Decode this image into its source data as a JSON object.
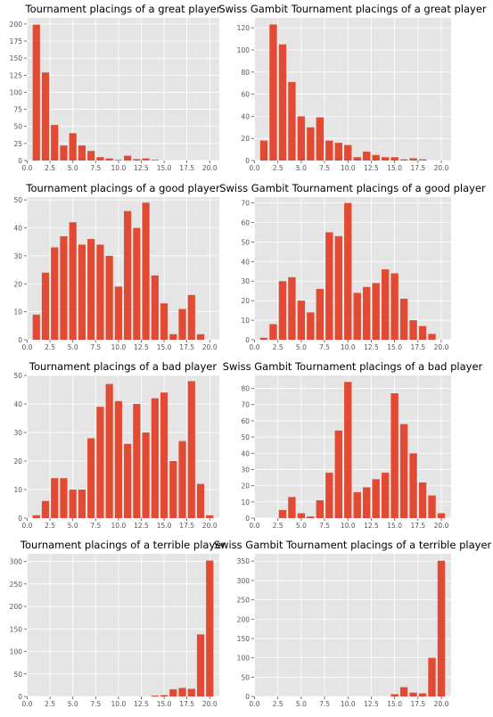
{
  "chart_data": [
    {
      "type": "bar",
      "title": "Tournament placings of a great player",
      "x": [
        1,
        2,
        3,
        4,
        5,
        6,
        7,
        8,
        9,
        10,
        11,
        12,
        13,
        14,
        15,
        16,
        17,
        18,
        19,
        20
      ],
      "values": [
        199,
        129,
        52,
        22,
        40,
        22,
        14,
        5,
        3,
        1,
        7,
        2,
        3,
        1,
        0,
        0,
        0,
        0,
        0,
        0
      ],
      "xlim": [
        -0.05,
        21.05
      ],
      "ylim": [
        0,
        209
      ],
      "xticks": [
        0.0,
        2.5,
        5.0,
        7.5,
        10.0,
        12.5,
        15.0,
        17.5,
        20.0
      ],
      "xtick_labels": [
        "0.0",
        "2.5",
        "5.0",
        "7.5",
        "10.0",
        "12.5",
        "15.0",
        "17.5",
        "20.0"
      ],
      "yticks": [
        0,
        25,
        50,
        75,
        100,
        125,
        150,
        175,
        200
      ],
      "ytick_labels": [
        "0",
        "25",
        "50",
        "75",
        "100",
        "125",
        "150",
        "175",
        "200"
      ],
      "grid": true
    },
    {
      "type": "bar",
      "title": "Swiss Gambit Tournament placings of a great player",
      "x": [
        1,
        2,
        3,
        4,
        5,
        6,
        7,
        8,
        9,
        10,
        11,
        12,
        13,
        14,
        15,
        16,
        17,
        18,
        19,
        20
      ],
      "values": [
        18,
        123,
        105,
        71,
        40,
        30,
        39,
        18,
        16,
        14,
        3,
        8,
        5,
        3,
        3,
        1,
        2,
        1,
        0,
        0
      ],
      "xlim": [
        -0.05,
        21.05
      ],
      "ylim": [
        0,
        129
      ],
      "xticks": [
        0.0,
        2.5,
        5.0,
        7.5,
        10.0,
        12.5,
        15.0,
        17.5,
        20.0
      ],
      "xtick_labels": [
        "0.0",
        "2.5",
        "5.0",
        "7.5",
        "10.0",
        "12.5",
        "15.0",
        "17.5",
        "20.0"
      ],
      "yticks": [
        0,
        20,
        40,
        60,
        80,
        100,
        120
      ],
      "ytick_labels": [
        "0",
        "20",
        "40",
        "60",
        "80",
        "100",
        "120"
      ],
      "grid": true
    },
    {
      "type": "bar",
      "title": "Tournament placings of a good player",
      "x": [
        1,
        2,
        3,
        4,
        5,
        6,
        7,
        8,
        9,
        10,
        11,
        12,
        13,
        14,
        15,
        16,
        17,
        18,
        19,
        20
      ],
      "values": [
        9,
        24,
        33,
        37,
        42,
        34,
        36,
        34,
        30,
        19,
        46,
        40,
        49,
        23,
        13,
        2,
        11,
        16,
        2,
        0
      ],
      "xlim": [
        -0.05,
        21.05
      ],
      "ylim": [
        0,
        51
      ],
      "xticks": [
        0.0,
        2.5,
        5.0,
        7.5,
        10.0,
        12.5,
        15.0,
        17.5,
        20.0
      ],
      "xtick_labels": [
        "0.0",
        "2.5",
        "5.0",
        "7.5",
        "10.0",
        "12.5",
        "15.0",
        "17.5",
        "20.0"
      ],
      "yticks": [
        0,
        10,
        20,
        30,
        40,
        50
      ],
      "ytick_labels": [
        "0",
        "10",
        "20",
        "30",
        "40",
        "50"
      ],
      "grid": true
    },
    {
      "type": "bar",
      "title": "Swiss Gambit Tournament placings of a good player",
      "x": [
        1,
        2,
        3,
        4,
        5,
        6,
        7,
        8,
        9,
        10,
        11,
        12,
        13,
        14,
        15,
        16,
        17,
        18,
        19,
        20
      ],
      "values": [
        1,
        8,
        30,
        32,
        20,
        14,
        26,
        55,
        53,
        70,
        24,
        27,
        29,
        36,
        34,
        21,
        10,
        7,
        3,
        0
      ],
      "xlim": [
        -0.05,
        21.05
      ],
      "ylim": [
        0,
        73
      ],
      "xticks": [
        0.0,
        2.5,
        5.0,
        7.5,
        10.0,
        12.5,
        15.0,
        17.5,
        20.0
      ],
      "xtick_labels": [
        "0.0",
        "2.5",
        "5.0",
        "7.5",
        "10.0",
        "12.5",
        "15.0",
        "17.5",
        "20.0"
      ],
      "yticks": [
        0,
        10,
        20,
        30,
        40,
        50,
        60,
        70
      ],
      "ytick_labels": [
        "0",
        "10",
        "20",
        "30",
        "40",
        "50",
        "60",
        "70"
      ],
      "grid": true
    },
    {
      "type": "bar",
      "title": "Tournament placings of a bad player",
      "x": [
        1,
        2,
        3,
        4,
        5,
        6,
        7,
        8,
        9,
        10,
        11,
        12,
        13,
        14,
        15,
        16,
        17,
        18,
        19,
        20
      ],
      "values": [
        1,
        6,
        14,
        14,
        10,
        10,
        28,
        39,
        47,
        41,
        26,
        40,
        30,
        42,
        44,
        20,
        27,
        48,
        12,
        1
      ],
      "xlim": [
        -0.05,
        21.05
      ],
      "ylim": [
        0,
        50
      ],
      "xticks": [
        0.0,
        2.5,
        5.0,
        7.5,
        10.0,
        12.5,
        15.0,
        17.5,
        20.0
      ],
      "xtick_labels": [
        "0.0",
        "2.5",
        "5.0",
        "7.5",
        "10.0",
        "12.5",
        "15.0",
        "17.5",
        "20.0"
      ],
      "yticks": [
        0,
        10,
        20,
        30,
        40,
        50
      ],
      "ytick_labels": [
        "0",
        "10",
        "20",
        "30",
        "40",
        "50"
      ],
      "grid": true
    },
    {
      "type": "bar",
      "title": "Swiss Gambit Tournament placings of a bad player",
      "x": [
        1,
        2,
        3,
        4,
        5,
        6,
        7,
        8,
        9,
        10,
        11,
        12,
        13,
        14,
        15,
        16,
        17,
        18,
        19,
        20
      ],
      "values": [
        0,
        0,
        5,
        13,
        3,
        1,
        11,
        28,
        54,
        84,
        16,
        19,
        24,
        28,
        77,
        58,
        40,
        22,
        14,
        3
      ],
      "xlim": [
        -0.05,
        21.05
      ],
      "ylim": [
        0,
        88
      ],
      "xticks": [
        0.0,
        2.5,
        5.0,
        7.5,
        10.0,
        12.5,
        15.0,
        17.5,
        20.0
      ],
      "xtick_labels": [
        "0.0",
        "2.5",
        "5.0",
        "7.5",
        "10.0",
        "12.5",
        "15.0",
        "17.5",
        "20.0"
      ],
      "yticks": [
        0,
        10,
        20,
        30,
        40,
        50,
        60,
        70,
        80
      ],
      "ytick_labels": [
        "0",
        "10",
        "20",
        "30",
        "40",
        "50",
        "60",
        "70",
        "80"
      ],
      "grid": true
    },
    {
      "type": "bar",
      "title": "Tournament placings of a terrible player",
      "x": [
        1,
        2,
        3,
        4,
        5,
        6,
        7,
        8,
        9,
        10,
        11,
        12,
        13,
        14,
        15,
        16,
        17,
        18,
        19,
        20
      ],
      "values": [
        0,
        0,
        0,
        0,
        0,
        0,
        0,
        0,
        0,
        0,
        0,
        0,
        0,
        2,
        3,
        16,
        19,
        17,
        138,
        302
      ],
      "xlim": [
        -0.05,
        21.05
      ],
      "ylim": [
        0,
        317
      ],
      "xticks": [
        0.0,
        2.5,
        5.0,
        7.5,
        10.0,
        12.5,
        15.0,
        17.5,
        20.0
      ],
      "xtick_labels": [
        "0.0",
        "2.5",
        "5.0",
        "7.5",
        "10.0",
        "12.5",
        "15.0",
        "17.5",
        "20.0"
      ],
      "yticks": [
        0,
        50,
        100,
        150,
        200,
        250,
        300
      ],
      "ytick_labels": [
        "0",
        "50",
        "100",
        "150",
        "200",
        "250",
        "300"
      ],
      "grid": true
    },
    {
      "type": "bar",
      "title": "Swiss Gambit Tournament placings of a terrible player",
      "x": [
        1,
        2,
        3,
        4,
        5,
        6,
        7,
        8,
        9,
        10,
        11,
        12,
        13,
        14,
        15,
        16,
        17,
        18,
        19,
        20
      ],
      "values": [
        0,
        0,
        0,
        0,
        0,
        0,
        0,
        0,
        0,
        0,
        0,
        0,
        0,
        0,
        6,
        24,
        10,
        8,
        100,
        351
      ],
      "xlim": [
        -0.05,
        21.05
      ],
      "ylim": [
        0,
        369
      ],
      "xticks": [
        0.0,
        2.5,
        5.0,
        7.5,
        10.0,
        12.5,
        15.0,
        17.5,
        20.0
      ],
      "xtick_labels": [
        "0.0",
        "2.5",
        "5.0",
        "7.5",
        "10.0",
        "12.5",
        "15.0",
        "17.5",
        "20.0"
      ],
      "yticks": [
        0,
        50,
        100,
        150,
        200,
        250,
        300,
        350
      ],
      "ytick_labels": [
        "0",
        "50",
        "100",
        "150",
        "200",
        "250",
        "300",
        "350"
      ],
      "grid": true
    }
  ],
  "colors": {
    "bar": "#E24A33",
    "axes_background": "#E5E5E5",
    "grid": "#FFFFFF",
    "tick_text": "#555555",
    "title_text": "#000000"
  }
}
